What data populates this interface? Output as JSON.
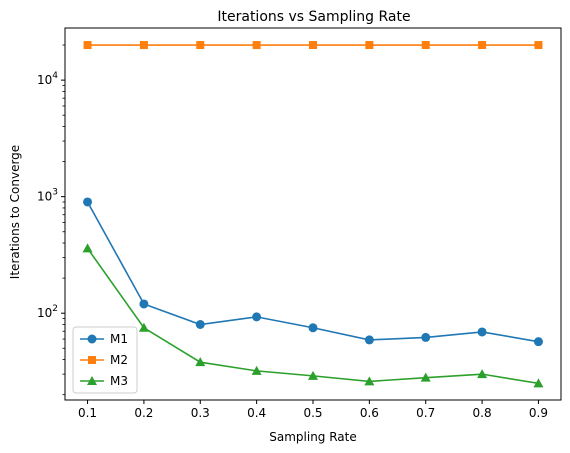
{
  "chart_data": {
    "type": "line",
    "title": "Iterations vs Sampling Rate",
    "xlabel": "Sampling Rate",
    "ylabel": "Iterations to Converge",
    "yscale": "log",
    "x": [
      0.1,
      0.2,
      0.3,
      0.4,
      0.5,
      0.6,
      0.7,
      0.8,
      0.9
    ],
    "x_tick_labels": [
      "0.1",
      "0.2",
      "0.3",
      "0.4",
      "0.5",
      "0.6",
      "0.7",
      "0.8",
      "0.9"
    ],
    "xlim": [
      0.06,
      0.94
    ],
    "ylim": [
      18,
      28000
    ],
    "y_major_ticks": [
      {
        "value": 100,
        "base": "10",
        "exp": "2"
      },
      {
        "value": 1000,
        "base": "10",
        "exp": "3"
      },
      {
        "value": 10000,
        "base": "10",
        "exp": "4"
      }
    ],
    "grid": false,
    "legend_position": "lower-left",
    "series": [
      {
        "name": "M1",
        "color": "#1f77b4",
        "marker": "circle",
        "values": [
          900,
          120,
          80,
          93,
          75,
          59,
          62,
          69,
          57
        ]
      },
      {
        "name": "M2",
        "color": "#ff7f0e",
        "marker": "square",
        "values": [
          20000,
          20000,
          20000,
          20000,
          20000,
          20000,
          20000,
          20000,
          20000
        ]
      },
      {
        "name": "M3",
        "color": "#2ca02c",
        "marker": "triangle",
        "values": [
          360,
          75,
          38,
          32,
          29,
          26,
          28,
          30,
          25
        ]
      }
    ]
  }
}
